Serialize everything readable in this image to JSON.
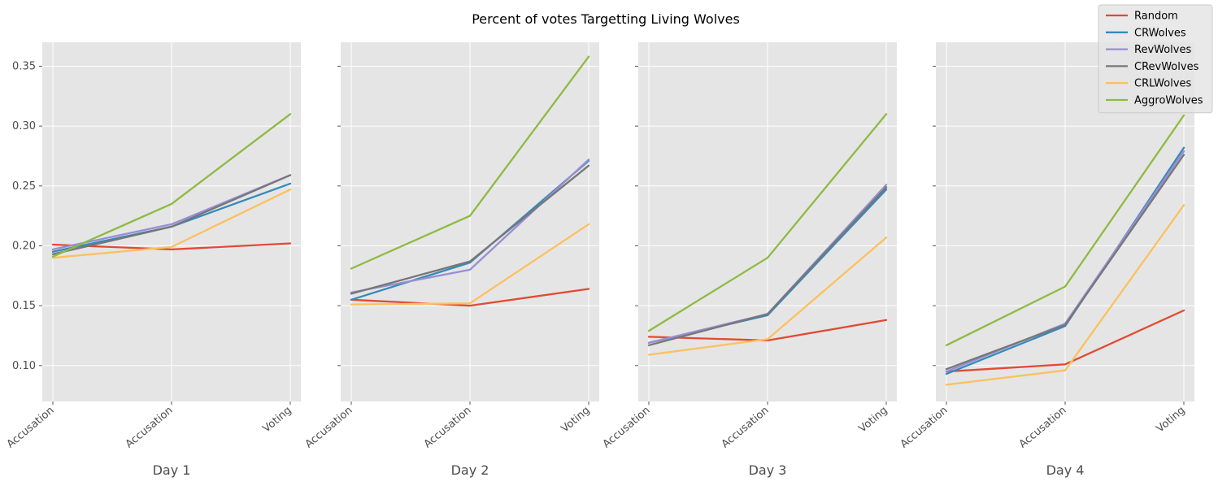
{
  "title": "Percent of votes Targetting Living Wolves",
  "chart_data": {
    "type": "line",
    "title": "Percent of votes Targetting Living Wolves",
    "categories": [
      "Accusation",
      "Accusation",
      "Voting"
    ],
    "ylim": [
      0.07,
      0.37
    ],
    "yticks": [
      0.1,
      0.15,
      0.2,
      0.25,
      0.3,
      0.35
    ],
    "ytick_labels": [
      "0.10",
      "0.15",
      "0.20",
      "0.25",
      "0.30",
      "0.35"
    ],
    "grid": true,
    "legend_position": "top-right",
    "series_colors": {
      "Random": "#E24A33",
      "CRWolves": "#348ABD",
      "RevWolves": "#988ED5",
      "CRevWolves": "#777777",
      "CRLWolves": "#FBC15E",
      "AggroWolves": "#8EBA42"
    },
    "panels": [
      {
        "xlabel": "Day 1",
        "series": [
          {
            "name": "Random",
            "values": [
              0.201,
              0.197,
              0.202
            ]
          },
          {
            "name": "CRWolves",
            "values": [
              0.195,
              0.216,
              0.252
            ]
          },
          {
            "name": "RevWolves",
            "values": [
              0.197,
              0.218,
              0.259
            ]
          },
          {
            "name": "CRevWolves",
            "values": [
              0.193,
              0.216,
              0.259
            ]
          },
          {
            "name": "CRLWolves",
            "values": [
              0.19,
              0.199,
              0.247
            ]
          },
          {
            "name": "AggroWolves",
            "values": [
              0.191,
              0.235,
              0.31
            ]
          }
        ]
      },
      {
        "xlabel": "Day 2",
        "series": [
          {
            "name": "Random",
            "values": [
              0.155,
              0.15,
              0.164
            ]
          },
          {
            "name": "CRWolves",
            "values": [
              0.155,
              0.186,
              0.271
            ]
          },
          {
            "name": "RevWolves",
            "values": [
              0.161,
              0.18,
              0.272
            ]
          },
          {
            "name": "CRevWolves",
            "values": [
              0.16,
              0.187,
              0.267
            ]
          },
          {
            "name": "CRLWolves",
            "values": [
              0.151,
              0.152,
              0.218
            ]
          },
          {
            "name": "AggroWolves",
            "values": [
              0.181,
              0.225,
              0.358
            ]
          }
        ]
      },
      {
        "xlabel": "Day 3",
        "series": [
          {
            "name": "Random",
            "values": [
              0.124,
              0.121,
              0.138
            ]
          },
          {
            "name": "CRWolves",
            "values": [
              0.119,
              0.142,
              0.247
            ]
          },
          {
            "name": "RevWolves",
            "values": [
              0.119,
              0.143,
              0.251
            ]
          },
          {
            "name": "CRevWolves",
            "values": [
              0.117,
              0.143,
              0.249
            ]
          },
          {
            "name": "CRLWolves",
            "values": [
              0.109,
              0.122,
              0.207
            ]
          },
          {
            "name": "AggroWolves",
            "values": [
              0.129,
              0.19,
              0.31
            ]
          }
        ]
      },
      {
        "xlabel": "Day 4",
        "series": [
          {
            "name": "Random",
            "values": [
              0.095,
              0.101,
              0.146
            ]
          },
          {
            "name": "CRWolves",
            "values": [
              0.093,
              0.133,
              0.282
            ]
          },
          {
            "name": "RevWolves",
            "values": [
              0.095,
              0.135,
              0.279
            ]
          },
          {
            "name": "CRevWolves",
            "values": [
              0.097,
              0.134,
              0.276
            ]
          },
          {
            "name": "CRLWolves",
            "values": [
              0.084,
              0.096,
              0.234
            ]
          },
          {
            "name": "AggroWolves",
            "values": [
              0.117,
              0.166,
              0.309
            ]
          }
        ]
      }
    ]
  }
}
